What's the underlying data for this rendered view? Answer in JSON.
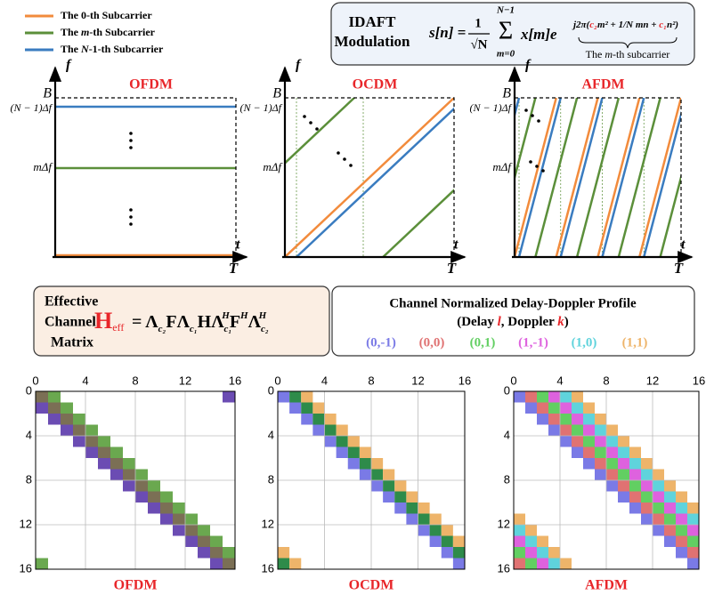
{
  "legend": [
    {
      "parts": [
        "The 0-th Subcarrier"
      ],
      "color": "#f28b3c"
    },
    {
      "parts": [
        "The ",
        "m",
        "-th Subcarrier"
      ],
      "color": "#5b8f3a"
    },
    {
      "parts": [
        "The ",
        "N",
        "-1-th Subcarrier"
      ],
      "color": "#3a7cc0"
    }
  ],
  "idaft": {
    "title": [
      "IDAFT",
      "Modulation"
    ],
    "lhs": "s[n] =",
    "frac_num": "1",
    "frac_den": "√N",
    "sum_top": "N−1",
    "sigma": "Σ",
    "sum_bot": "m=0",
    "term": "x[m]e",
    "exponent": [
      "j2π(",
      "c₂",
      "m² + ",
      "1/N",
      " mn + ",
      "c₁",
      "n²)"
    ],
    "brace_label": [
      "The ",
      "m",
      "-th subcarrier"
    ]
  },
  "plots": [
    {
      "title": "OFDM",
      "f": "f",
      "t": "t",
      "B": "B",
      "T": "T",
      "top": "(N − 1)Δf",
      "mid": "mΔf"
    },
    {
      "title": "OCDM",
      "f": "f",
      "t": "t",
      "B": "B",
      "T": "T",
      "top": "(N − 1)Δf",
      "mid": "mΔf"
    },
    {
      "title": "AFDM",
      "f": "f",
      "t": "t",
      "B": "B",
      "T": "T",
      "top": "(N − 1)Δf",
      "mid": "mΔf"
    }
  ],
  "effective": {
    "label": [
      "Effective",
      "Channel",
      "Matrix"
    ],
    "H": "H",
    "eff": "eff",
    "rhs": [
      "= Λ",
      "c₂",
      "FΛ",
      "c₁",
      "HΛ",
      "c₁",
      "H",
      "F",
      "H",
      "Λ",
      "c₂",
      "H"
    ]
  },
  "profile": {
    "title": "Channel Normalized Delay-Doppler Profile",
    "sub": [
      "(Delay ",
      "l",
      ", Doppler ",
      "k",
      ")"
    ],
    "paths": [
      {
        "label": "(0,-1)",
        "color": "#7a7ae6"
      },
      {
        "label": "(0,0)",
        "color": "#e07272"
      },
      {
        "label": "(0,1)",
        "color": "#62cf62"
      },
      {
        "label": "(1,-1)",
        "color": "#de62de"
      },
      {
        "label": "(1,0)",
        "color": "#5fd3dc"
      },
      {
        "label": "(1,1)",
        "color": "#eeb46a"
      }
    ]
  },
  "matrices": [
    {
      "title": "OFDM",
      "ticks": [
        0,
        4,
        8,
        12,
        16
      ]
    },
    {
      "title": "OCDM",
      "ticks": [
        0,
        4,
        8,
        12,
        16
      ]
    },
    {
      "title": "AFDM",
      "ticks": [
        0,
        4,
        8,
        12,
        16
      ]
    }
  ]
}
